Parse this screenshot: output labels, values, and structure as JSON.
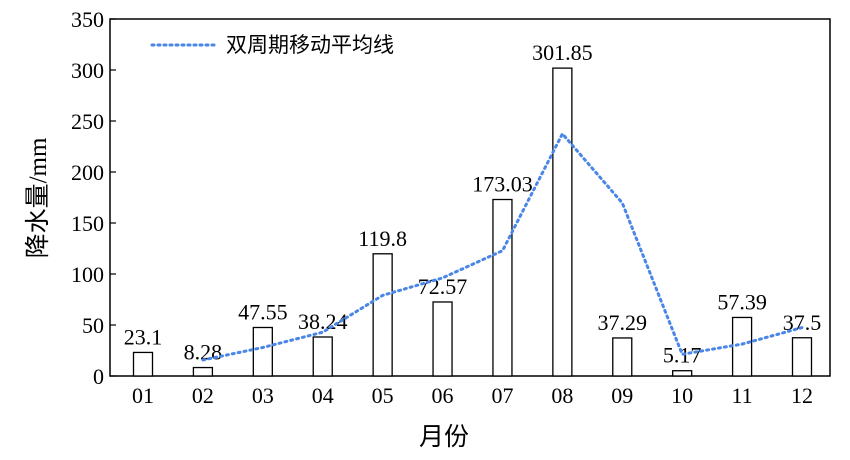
{
  "chart_data": {
    "type": "bar",
    "categories": [
      "01",
      "02",
      "03",
      "04",
      "05",
      "06",
      "07",
      "08",
      "09",
      "10",
      "11",
      "12"
    ],
    "series": [
      {
        "values": [
          23.1,
          8.28,
          47.55,
          38.24,
          119.8,
          72.57,
          173.03,
          301.85,
          37.29,
          5.17,
          57.39,
          37.5
        ],
        "data_labels": [
          "23.1",
          "8.28",
          "47.55",
          "38.24",
          "119.8",
          "72.57",
          "173.03",
          "301.85",
          "37.29",
          "5.17",
          "57.39",
          "37.5"
        ]
      },
      {
        "name": "双周期移动平均线",
        "type": "line",
        "style": "dotted",
        "color": "#4a86e8",
        "x": [
          "02",
          "03",
          "04",
          "05",
          "06",
          "07",
          "08",
          "09",
          "10",
          "11",
          "12"
        ],
        "values": [
          15.69,
          27.92,
          42.9,
          79.02,
          96.19,
          122.8,
          237.44,
          169.57,
          21.23,
          31.28,
          47.45
        ]
      }
    ],
    "xlabel": "月份",
    "ylabel": "降水量/mm",
    "ylim": [
      0,
      350
    ],
    "yticks": [
      0,
      50,
      100,
      150,
      200,
      250,
      300,
      350
    ],
    "grid": false,
    "legend_position": "top-left",
    "bar_fill": "#ffffff",
    "bar_stroke": "#000000"
  }
}
